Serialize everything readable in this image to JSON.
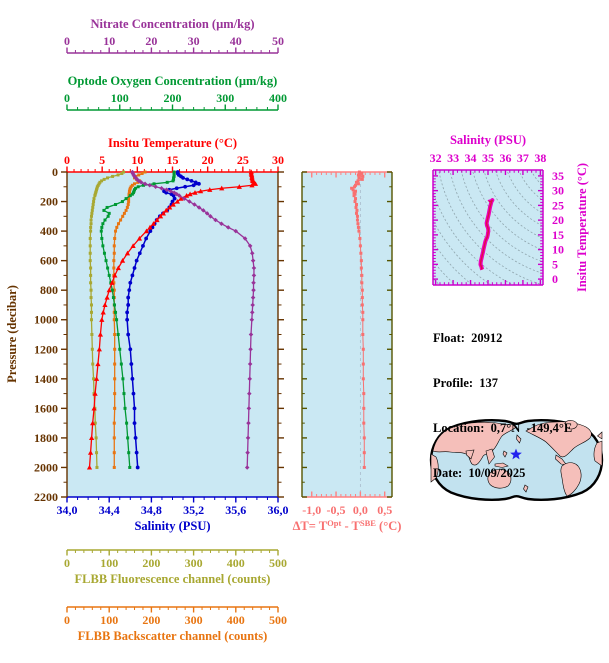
{
  "page": {
    "background": "#ffffff"
  },
  "colors": {
    "nitrate": "#993399",
    "oxygen": "#009933",
    "temperature": "#ff0000",
    "salinity": "#0000cc",
    "pressure": "#663300",
    "fluorescence": "#a8a832",
    "backscatter": "#e87511",
    "delta_series": "#f87070",
    "delta_axis": "#ff8080",
    "delta_frame": "#555500",
    "ts_curve": "#ee00bb",
    "ts_frame": "#cc00cc",
    "ts_text": "#dd00cc",
    "plot_bg": "#cae8f3",
    "contour": "#8fa5ad",
    "gridline": "#aabbcc",
    "land": "#f5bfba",
    "ocean": "#c2e2ef",
    "map_outline": "#000000",
    "star": "#2222ee",
    "info_text": "#000000"
  },
  "info": {
    "lines": [
      "Float:  20912",
      "Profile:  137",
      "Location:  0,7°N  -149,4°E",
      "Date:  10/09/2025"
    ]
  },
  "chart_data": [
    {
      "id": "main",
      "type": "line",
      "y_axis": {
        "label": "Pressure (decibar)",
        "range": [
          0,
          2200
        ],
        "tick_step": 200,
        "minor_step": 100
      },
      "x_axes": [
        {
          "id": "nitrate",
          "label": "Nitrate Concentration (µm/kg)",
          "range": [
            0,
            50
          ],
          "ticks": [
            0,
            10,
            20,
            30,
            40,
            50
          ],
          "minor_step": 2
        },
        {
          "id": "oxygen",
          "label": "Optode Oxygen Concentration (µm/kg)",
          "range": [
            0,
            400
          ],
          "ticks": [
            0,
            100,
            200,
            300,
            400
          ],
          "minor_step": 20
        },
        {
          "id": "temperature",
          "label": "Insitu Temperature (°C)",
          "range": [
            0,
            30
          ],
          "ticks": [
            0,
            5,
            10,
            15,
            20,
            25,
            30
          ],
          "minor_step": 1
        },
        {
          "id": "salinity",
          "label": "Salinity (PSU)",
          "range": [
            34.0,
            36.0
          ],
          "ticks": [
            34.0,
            34.4,
            34.8,
            35.2,
            35.6,
            36.0
          ],
          "tick_labels": [
            "34,0",
            "34,4",
            "34,8",
            "35,2",
            "35,6",
            "36,0"
          ],
          "minor_step": 0.1
        },
        {
          "id": "fluorescence",
          "label": "FLBB Fluorescence channel (counts)",
          "range": [
            0,
            500
          ],
          "ticks": [
            0,
            100,
            200,
            300,
            400,
            500
          ],
          "minor_step": 20
        },
        {
          "id": "backscatter",
          "label": "FLBB Backscatter channel (counts)",
          "range": [
            0,
            500
          ],
          "ticks": [
            0,
            100,
            200,
            300,
            400,
            500
          ],
          "minor_step": 20
        }
      ],
      "pressure_dbar": [
        0,
        10,
        20,
        30,
        40,
        50,
        60,
        70,
        80,
        90,
        100,
        110,
        120,
        130,
        140,
        150,
        160,
        180,
        200,
        220,
        240,
        260,
        280,
        300,
        325,
        350,
        375,
        400,
        450,
        500,
        550,
        600,
        650,
        700,
        750,
        800,
        850,
        900,
        950,
        1000,
        1100,
        1200,
        1300,
        1400,
        1500,
        1600,
        1700,
        1800,
        1900,
        2000
      ],
      "series": [
        {
          "id": "fluorescence",
          "axis": "fluorescence",
          "marker": "square",
          "values": [
            134,
            130,
            121,
            108,
            96,
            88,
            82,
            78,
            76,
            74,
            72,
            71,
            70,
            69,
            68,
            67,
            66,
            64,
            63,
            62,
            61,
            60,
            59,
            58,
            57,
            57,
            56,
            56,
            55,
            55,
            55,
            55,
            56,
            56,
            56,
            57,
            57,
            58,
            58,
            58,
            59,
            60,
            61,
            63,
            64,
            66,
            67,
            69,
            70,
            71
          ]
        },
        {
          "id": "backscatter",
          "axis": "backscatter",
          "marker": "square",
          "values": [
            185,
            178,
            170,
            163,
            160,
            165,
            172,
            168,
            160,
            155,
            152,
            150,
            149,
            148,
            148,
            147,
            147,
            146,
            146,
            145,
            143,
            140,
            136,
            132,
            127,
            122,
            118,
            115,
            113,
            112,
            112,
            111,
            111,
            111,
            111,
            112,
            112,
            112,
            112,
            112,
            113,
            113,
            113,
            113,
            113,
            113,
            112,
            112,
            112,
            112
          ]
        },
        {
          "id": "oxygen",
          "axis": "oxygen",
          "marker": "square",
          "values": [
            203,
            203,
            203,
            203,
            202,
            202,
            201,
            190,
            165,
            145,
            135,
            130,
            128,
            127,
            126,
            124,
            120,
            112,
            105,
            92,
            76,
            70,
            80,
            78,
            72,
            68,
            66,
            65,
            66,
            68,
            71,
            74,
            77,
            80,
            83,
            86,
            88,
            90,
            92,
            94,
            97,
            100,
            103,
            106,
            108,
            110,
            113,
            115,
            117,
            119
          ]
        },
        {
          "id": "salinity",
          "axis": "salinity",
          "marker": "circle",
          "values": [
            35.05,
            35.05,
            35.06,
            35.08,
            35.1,
            35.14,
            35.18,
            35.22,
            35.25,
            35.2,
            35.12,
            35.04,
            34.97,
            34.92,
            34.94,
            34.99,
            35.01,
            35.02,
            35.0,
            34.99,
            34.97,
            34.95,
            34.91,
            34.88,
            34.85,
            34.83,
            34.81,
            34.79,
            34.75,
            34.72,
            34.69,
            34.66,
            34.64,
            34.62,
            34.6,
            34.59,
            34.58,
            34.58,
            34.57,
            34.57,
            34.58,
            34.6,
            34.61,
            34.62,
            34.63,
            34.64,
            34.64,
            34.65,
            34.66,
            34.67
          ]
        },
        {
          "id": "temperature",
          "axis": "temperature",
          "marker": "triangle",
          "values": [
            26.2,
            26.2,
            26.25,
            26.3,
            26.3,
            26.35,
            26.4,
            26.6,
            26.8,
            26.3,
            24.5,
            22.0,
            20.3,
            19.0,
            18.2,
            17.5,
            17.0,
            16.2,
            15.7,
            15.1,
            14.6,
            14.1,
            13.7,
            13.3,
            12.8,
            12.3,
            11.8,
            11.3,
            10.3,
            9.4,
            8.6,
            7.9,
            7.3,
            6.8,
            6.4,
            6.0,
            5.7,
            5.4,
            5.15,
            4.95,
            4.75,
            4.6,
            4.4,
            4.2,
            4.0,
            3.85,
            3.65,
            3.5,
            3.35,
            3.2
          ]
        },
        {
          "id": "nitrate",
          "axis": "nitrate",
          "marker": "diamond",
          "values": [
            15.5,
            15.6,
            15.8,
            16.0,
            16.3,
            16.6,
            17.0,
            17.6,
            18.5,
            19.6,
            21.0,
            22.4,
            23.6,
            24.6,
            25.4,
            26.0,
            26.6,
            27.8,
            29.0,
            30.2,
            31.3,
            32.3,
            33.2,
            34.0,
            35.2,
            36.6,
            38.2,
            40.0,
            42.2,
            43.4,
            43.9,
            44.1,
            44.3,
            44.3,
            44.2,
            44.2,
            44.1,
            44.0,
            43.9,
            43.8,
            43.6,
            43.5,
            43.4,
            43.3,
            43.2,
            43.1,
            43.0,
            42.9,
            42.8,
            42.7
          ]
        }
      ]
    },
    {
      "id": "delta",
      "type": "line",
      "x_axis": {
        "label_parts": {
          "pre": "ΔT= T",
          "sup1": "Opt",
          "mid": " - T",
          "sup2": "SBE",
          "post": " (°C)"
        },
        "range_view": [
          -1.2,
          0.65
        ],
        "ticks": [
          -1.0,
          -0.5,
          0.0,
          0.5
        ],
        "tick_labels": [
          "-1,0",
          "-0,5",
          "0,0",
          "0,5"
        ],
        "minor_step": 0.1,
        "gridline_at": 0.0
      },
      "series": [
        {
          "id": "delta_t",
          "marker": "square",
          "values": [
            -0.02,
            0.03,
            -0.04,
            0.05,
            -0.03,
            0.04,
            -0.05,
            -0.08,
            -0.04,
            -0.1,
            -0.12,
            -0.18,
            -0.15,
            -0.1,
            -0.13,
            -0.11,
            -0.13,
            -0.1,
            -0.11,
            -0.08,
            -0.09,
            -0.07,
            -0.08,
            -0.06,
            -0.06,
            -0.05,
            -0.04,
            -0.03,
            -0.01,
            0.0,
            0.01,
            0.02,
            0.02,
            0.03,
            0.03,
            0.04,
            0.04,
            0.04,
            0.05,
            0.05,
            0.05,
            0.06,
            0.06,
            0.06,
            0.07,
            0.07,
            0.07,
            0.08,
            0.08,
            0.08
          ]
        }
      ]
    },
    {
      "id": "ts",
      "type": "line",
      "x_axis": {
        "label": "Salinity (PSU)",
        "range_view": [
          31.85,
          38.15
        ],
        "ticks": [
          32,
          33,
          34,
          35,
          36,
          37,
          38
        ],
        "minor_step": 0.25
      },
      "y_axis": {
        "label": "Insitu Temperature (°C)",
        "range_view": [
          -2,
          37
        ],
        "ticks": [
          0,
          5,
          10,
          15,
          20,
          25,
          30,
          35
        ],
        "minor_step": 1
      },
      "curve": "derived from main.salinity (x) vs main.temperature (y) at each pressure level"
    }
  ]
}
